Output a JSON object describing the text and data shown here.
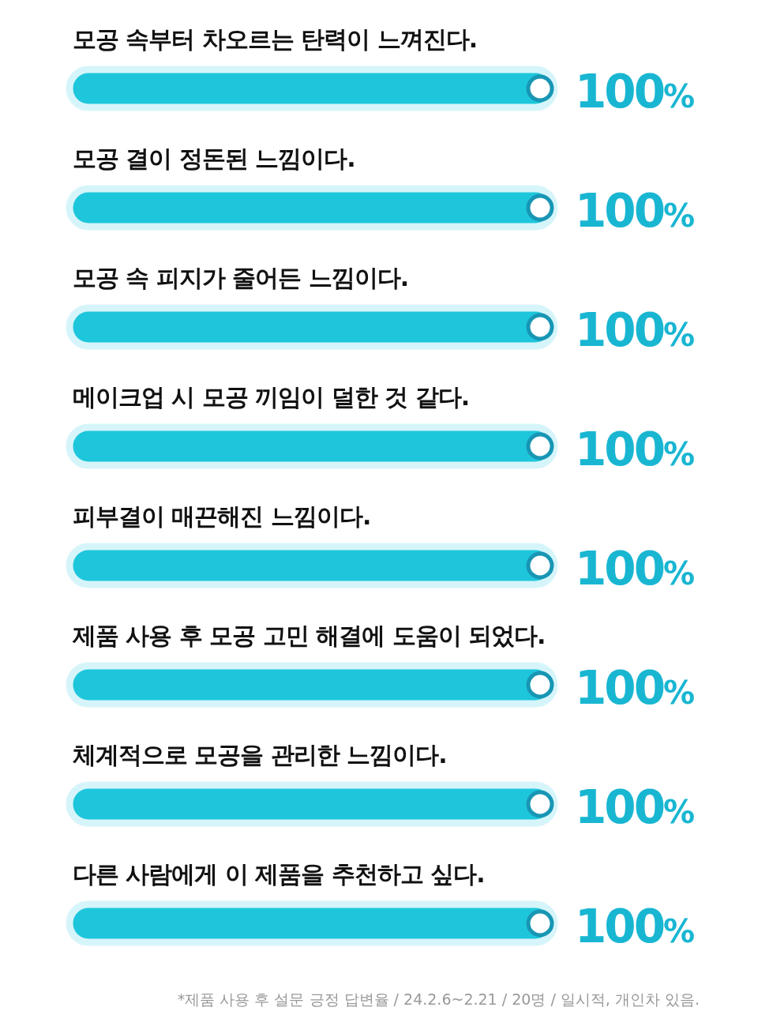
{
  "chart_data": {
    "type": "bar",
    "orientation": "horizontal",
    "categories": [
      "모공 속부터 차오르는 탄력이 느껴진다.",
      "모공 결이 정돈된 느낌이다.",
      "모공 속 피지가 줄어든 느낌이다.",
      "메이크업 시 모공 끼임이 덜한 것 같다.",
      "피부결이 매끈해진 느낌이다.",
      "제품 사용 후 모공 고민 해결에 도움이 되었다.",
      "체계적으로 모공을 관리한 느낌이다.",
      "다른 사람에게 이 제품을 추천하고 싶다."
    ],
    "values": [
      100,
      100,
      100,
      100,
      100,
      100,
      100,
      100
    ],
    "value_labels": [
      "100%",
      "100%",
      "100%",
      "100%",
      "100%",
      "100%",
      "100%",
      "100%"
    ],
    "color": "#1ec6dc",
    "tick_labels": false,
    "annotations": [
      "*제품 사용 후 설문 긍정 답변율 / 24.2.6~2.21 / 20명 / 일시적, 개인차 있음."
    ]
  }
}
